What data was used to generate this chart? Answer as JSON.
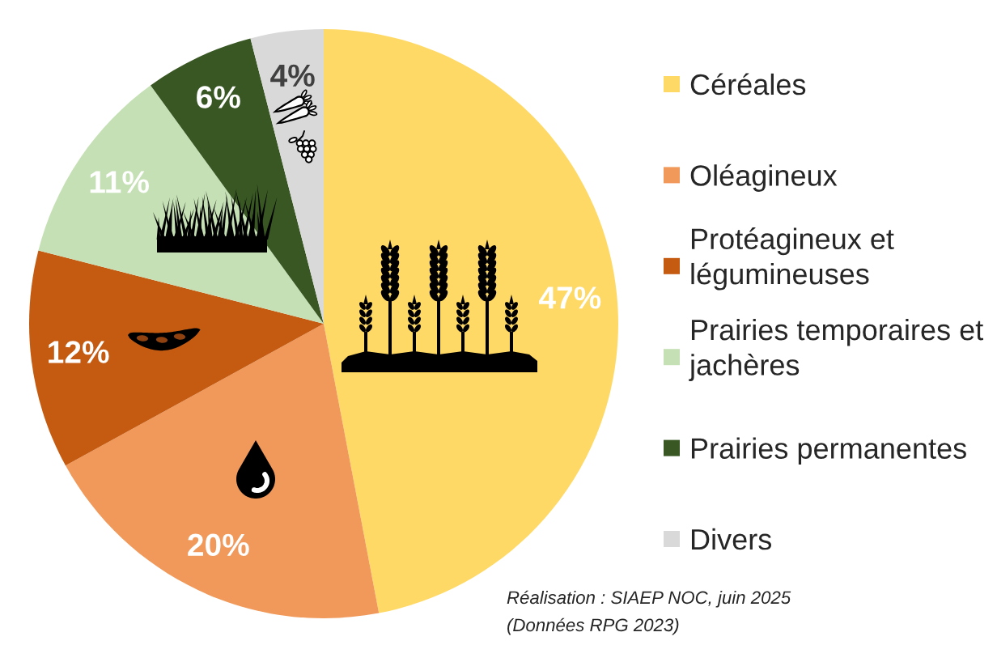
{
  "chart_data": {
    "type": "pie",
    "categories": [
      "Céréales",
      "Oléagineux",
      "Protéagineux et légumineuses",
      "Prairies temporaires et jachères",
      "Prairies permanentes",
      "Divers"
    ],
    "values": [
      47,
      20,
      12,
      11,
      6,
      4
    ],
    "colors": [
      "#ffd966",
      "#f0995a",
      "#c55a11",
      "#c5e0b4",
      "#385723",
      "#d9d9d9"
    ],
    "value_labels": [
      "47%",
      "20%",
      "12%",
      "11%",
      "6%",
      "4%"
    ],
    "legend": "right",
    "annotations": [
      "Réalisation : SIAEP NOC, juin 2025",
      "(Données RPG 2023)"
    ]
  }
}
